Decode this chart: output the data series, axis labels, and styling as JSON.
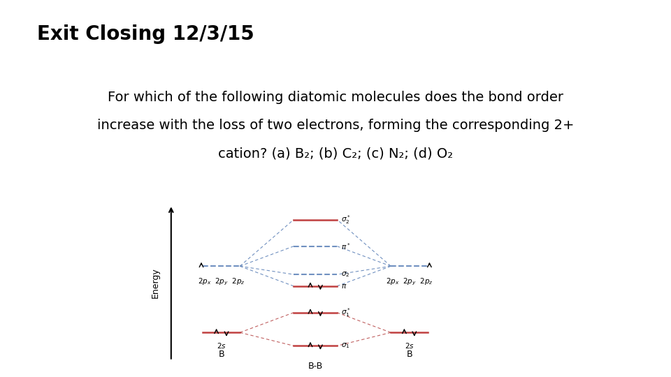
{
  "title": "Exit Closing 12/3/15",
  "body_line1": "For which of the following diatomic molecules does the bond order",
  "body_line2": "increase with the loss of two electrons, forming the corresponding 2+",
  "body_line3": "cation? (a) B₂; (b) C₂; (c) N₂; (d) O₂",
  "background_color": "#ffffff",
  "title_fontsize": 20,
  "body_fontsize": 14,
  "diagram_label_B_left": "B",
  "diagram_label_BB": "B-B",
  "diagram_label_B_right": "B",
  "diagram_energy_label": "Energy",
  "color_dashed_blue": "#7090c0",
  "color_dashed_red": "#c06060",
  "color_orbital_line": "#c04040",
  "color_orbital_blue_line": "#7090c0",
  "color_black": "#000000"
}
